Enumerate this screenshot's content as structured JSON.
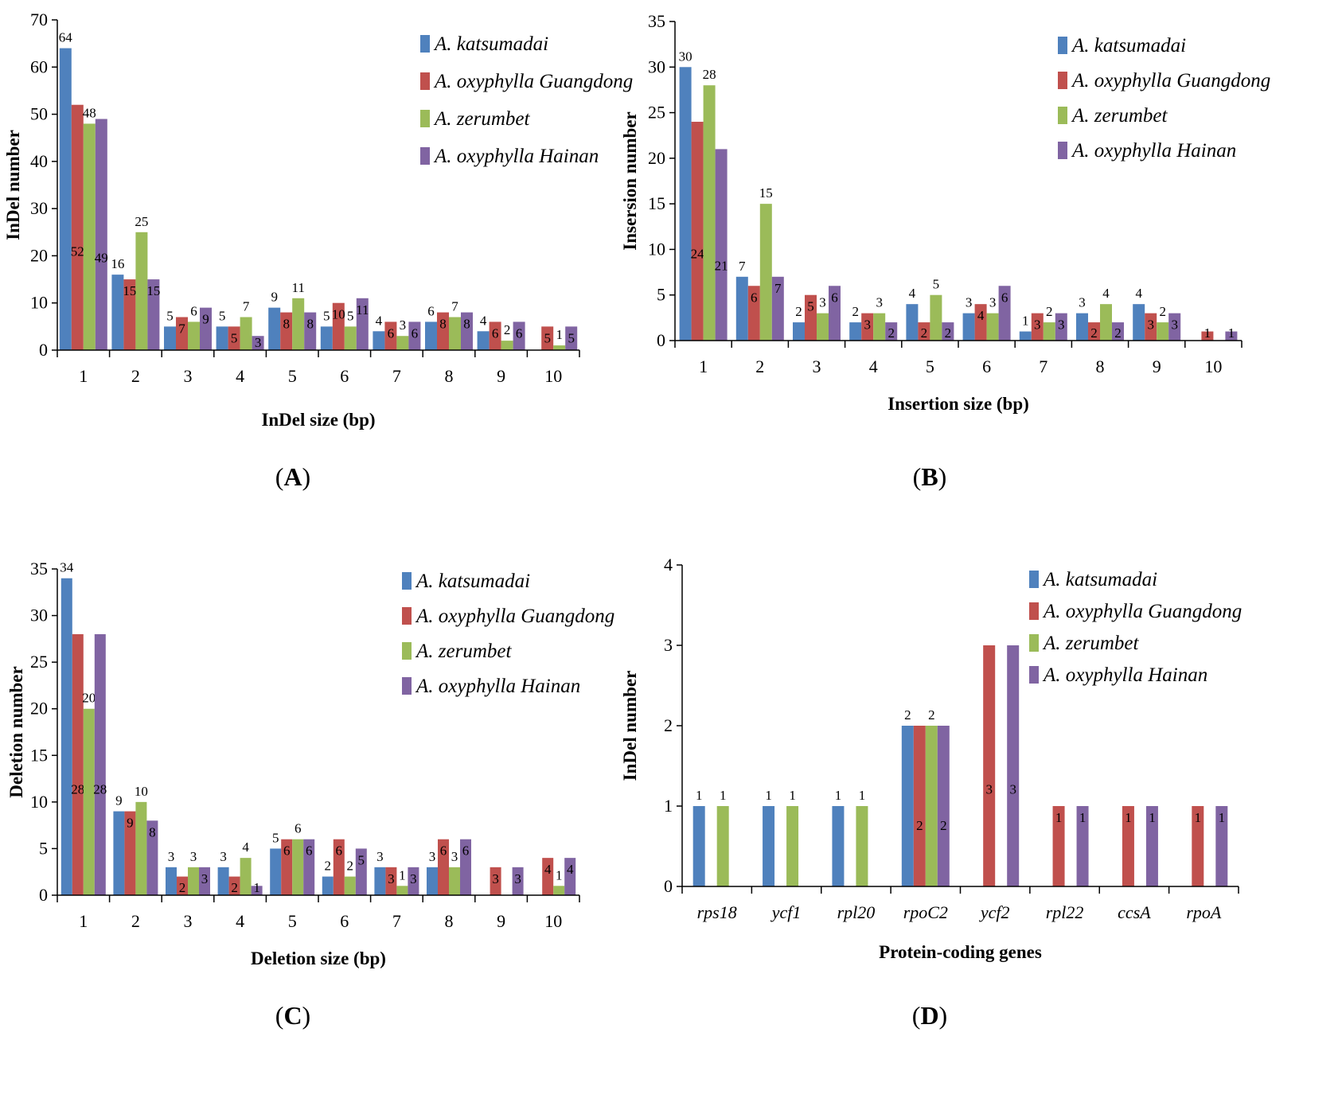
{
  "colors": {
    "A. katsumadai": "#4F81BD",
    "A. oxyphylla Guangdong": "#C0504D",
    "A. zerumbet": "#9BBB59",
    "A. oxyphylla Hainan": "#8064A2"
  },
  "chart_data": [
    {
      "panel": "A",
      "type": "bar",
      "title": "",
      "xlabel": "InDel  size (bp)",
      "ylabel": "InDel number",
      "ylim": [
        0,
        70
      ],
      "yticks": [
        0,
        10,
        20,
        30,
        40,
        50,
        60,
        70
      ],
      "categories": [
        "1",
        "2",
        "3",
        "4",
        "5",
        "6",
        "7",
        "8",
        "9",
        "10"
      ],
      "series": [
        {
          "name": "A. katsumadai",
          "values": [
            64,
            16,
            5,
            5,
            9,
            5,
            4,
            6,
            4,
            0
          ],
          "labels": [
            "64",
            "16",
            "5",
            "5",
            "9",
            "5",
            "4",
            "6",
            "4",
            ""
          ]
        },
        {
          "name": "A. oxyphylla Guangdong",
          "values": [
            52,
            15,
            7,
            5,
            8,
            10,
            6,
            8,
            6,
            5
          ],
          "labels": [
            "52",
            "15",
            "7",
            "5",
            "8",
            "10",
            "6",
            "8",
            "6",
            "5"
          ]
        },
        {
          "name": "A. zerumbet",
          "values": [
            48,
            25,
            6,
            7,
            11,
            5,
            3,
            7,
            2,
            1
          ],
          "labels": [
            "48",
            "25",
            "6",
            "7",
            "11",
            "5",
            "3",
            "7",
            "2",
            "1"
          ]
        },
        {
          "name": "A. oxyphylla Hainan",
          "values": [
            49,
            15,
            9,
            3,
            8,
            11,
            6,
            8,
            6,
            5
          ],
          "labels": [
            "49",
            "15",
            "9",
            "3",
            "8",
            "11",
            "6",
            "8",
            "6",
            "5"
          ]
        }
      ],
      "legend": "top-right"
    },
    {
      "panel": "B",
      "type": "bar",
      "title": "",
      "xlabel": "Insertion size (bp)",
      "ylabel": "Insersion number",
      "ylim": [
        0,
        35
      ],
      "yticks": [
        0,
        5,
        10,
        15,
        20,
        25,
        30,
        35
      ],
      "categories": [
        "1",
        "2",
        "3",
        "4",
        "5",
        "6",
        "7",
        "8",
        "9",
        "10"
      ],
      "series": [
        {
          "name": "A. katsumadai",
          "values": [
            30,
            7,
            2,
            2,
            4,
            3,
            1,
            3,
            4,
            0
          ],
          "labels": [
            "30",
            "7",
            "2",
            "2",
            "4",
            "3",
            "1",
            "3",
            "4",
            ""
          ]
        },
        {
          "name": "A. oxyphylla Guangdong",
          "values": [
            24,
            6,
            5,
            3,
            2,
            4,
            3,
            2,
            3,
            1
          ],
          "labels": [
            "24",
            "6",
            "5",
            "3",
            "2",
            "4",
            "3",
            "2",
            "3",
            "1"
          ]
        },
        {
          "name": "A. zerumbet",
          "values": [
            28,
            15,
            3,
            3,
            5,
            3,
            2,
            4,
            2,
            0
          ],
          "labels": [
            "28",
            "15",
            "3",
            "3",
            "5",
            "3",
            "2",
            "4",
            "2",
            ""
          ]
        },
        {
          "name": "A. oxyphylla Hainan",
          "values": [
            21,
            7,
            6,
            2,
            2,
            6,
            3,
            2,
            3,
            1
          ],
          "labels": [
            "21",
            "7",
            "6",
            "2",
            "2",
            "6",
            "3",
            "2",
            "3",
            "1"
          ]
        }
      ],
      "legend": "top-right"
    },
    {
      "panel": "C",
      "type": "bar",
      "title": "",
      "xlabel": "Deletion size (bp)",
      "ylabel": "Deletion number",
      "ylim": [
        0,
        35
      ],
      "yticks": [
        0,
        5,
        10,
        15,
        20,
        25,
        30,
        35
      ],
      "categories": [
        "1",
        "2",
        "3",
        "4",
        "5",
        "6",
        "7",
        "8",
        "9",
        "10"
      ],
      "series": [
        {
          "name": "A. katsumadai",
          "values": [
            34,
            9,
            3,
            3,
            5,
            2,
            3,
            3,
            0,
            0
          ],
          "labels": [
            "34",
            "9",
            "3",
            "3",
            "5",
            "2",
            "3",
            "3",
            "",
            ""
          ]
        },
        {
          "name": "A. oxyphylla Guangdong",
          "values": [
            28,
            9,
            2,
            2,
            6,
            6,
            3,
            6,
            3,
            4
          ],
          "labels": [
            "28",
            "9",
            "2",
            "2",
            "6",
            "6",
            "3",
            "6",
            "3",
            "4"
          ]
        },
        {
          "name": "A. zerumbet",
          "values": [
            20,
            10,
            3,
            4,
            6,
            2,
            1,
            3,
            0,
            1
          ],
          "labels": [
            "20",
            "10",
            "3",
            "4",
            "6",
            "2",
            "1",
            "3",
            "",
            "1"
          ]
        },
        {
          "name": "A. oxyphylla Hainan",
          "values": [
            28,
            8,
            3,
            1,
            6,
            5,
            3,
            6,
            3,
            4
          ],
          "labels": [
            "28",
            "8",
            "3",
            "1",
            "6",
            "5",
            "3",
            "6",
            "3",
            "4"
          ]
        }
      ],
      "legend": "top-right"
    },
    {
      "panel": "D",
      "type": "bar",
      "title": "",
      "xlabel": "Protein-coding genes",
      "ylabel": "InDel number",
      "ylim": [
        0,
        4
      ],
      "yticks": [
        0,
        1,
        2,
        3,
        4
      ],
      "categories": [
        "rps18",
        "ycf1",
        "rpl20",
        "rpoC2",
        "ycf2",
        "rpl22",
        "ccsA",
        "rpoA"
      ],
      "italic_categories": true,
      "series": [
        {
          "name": "A. katsumadai",
          "values": [
            1,
            1,
            1,
            2,
            0,
            0,
            0,
            0
          ],
          "labels": [
            "1",
            "1",
            "1",
            "2",
            "",
            "",
            "",
            ""
          ]
        },
        {
          "name": "A. oxyphylla Guangdong",
          "values": [
            0,
            0,
            0,
            2,
            3,
            1,
            1,
            1
          ],
          "labels": [
            "",
            "",
            "",
            "2",
            "3",
            "1",
            "1",
            "1"
          ]
        },
        {
          "name": "A. zerumbet",
          "values": [
            1,
            1,
            1,
            2,
            0,
            0,
            0,
            0
          ],
          "labels": [
            "1",
            "1",
            "1",
            "2",
            "",
            "",
            "",
            ""
          ]
        },
        {
          "name": "A. oxyphylla Hainan",
          "values": [
            0,
            0,
            0,
            2,
            3,
            1,
            1,
            1
          ],
          "labels": [
            "",
            "",
            "",
            "2",
            "3",
            "1",
            "1",
            "1"
          ]
        }
      ],
      "legend": "top-right"
    }
  ],
  "panel_tags": [
    {
      "open": "(",
      "letter": "A",
      "close": ")"
    },
    {
      "open": "(",
      "letter": "B",
      "close": ")"
    },
    {
      "open": "(",
      "letter": "C",
      "close": ")"
    },
    {
      "open": "(",
      "letter": "D",
      "close": ")"
    }
  ]
}
